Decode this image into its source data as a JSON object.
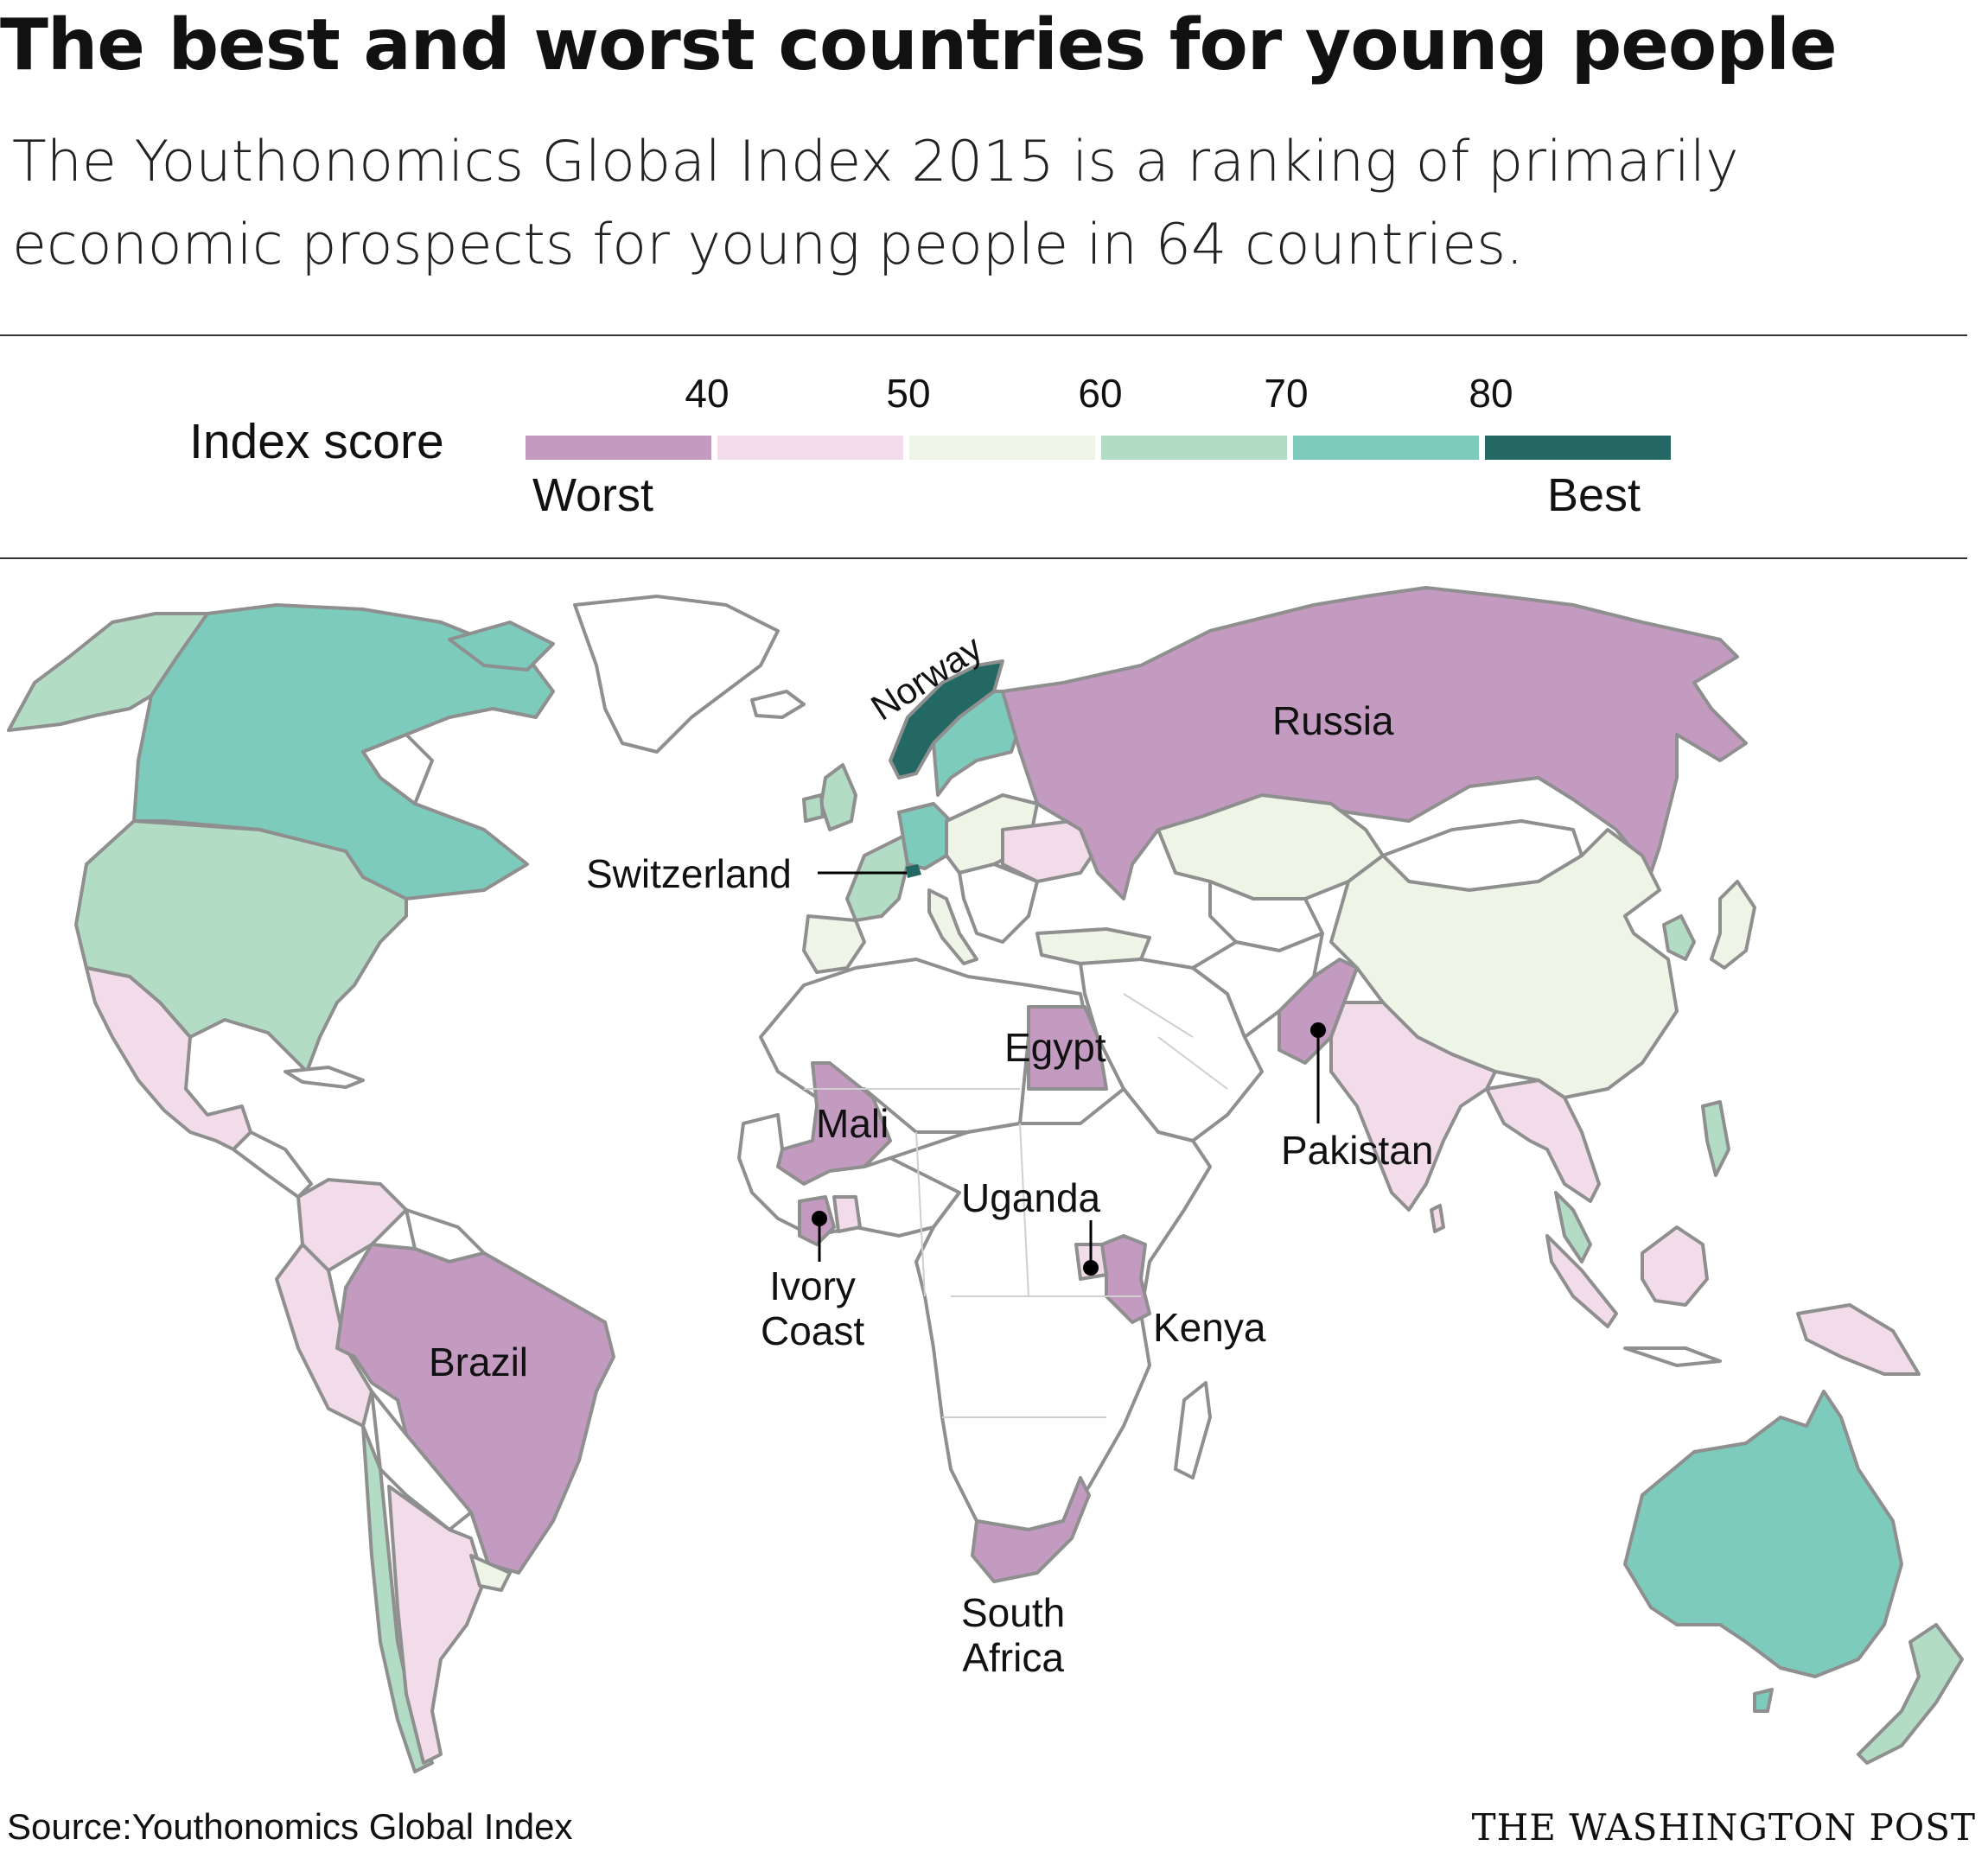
{
  "title": "The best and worst countries for young people",
  "subtitle": "The Youthonomics Global Index 2015 is a ranking of primarily economic prospects for young people in 64 countries.",
  "legend": {
    "label": "Index score",
    "ticks": [
      "40",
      "50",
      "60",
      "70",
      "80"
    ],
    "low_label": "Worst",
    "high_label": "Best",
    "colors": [
      "#c39bc1",
      "#f2dcea",
      "#eef5e6",
      "#b2dcc4",
      "#7ccbbc",
      "#236863"
    ]
  },
  "map_labels": {
    "norway": "Norway",
    "russia": "Russia",
    "switzerland": "Switzerland",
    "egypt": "Egypt",
    "mali": "Mali",
    "pakistan": "Pakistan",
    "uganda": "Uganda",
    "ivory_coast": "Ivory\nCoast",
    "kenya": "Kenya",
    "brazil": "Brazil",
    "south_africa": "South\nAfrica"
  },
  "source": "Source:Youthonomics Global Index",
  "credit": "THE WASHINGTON POST"
}
